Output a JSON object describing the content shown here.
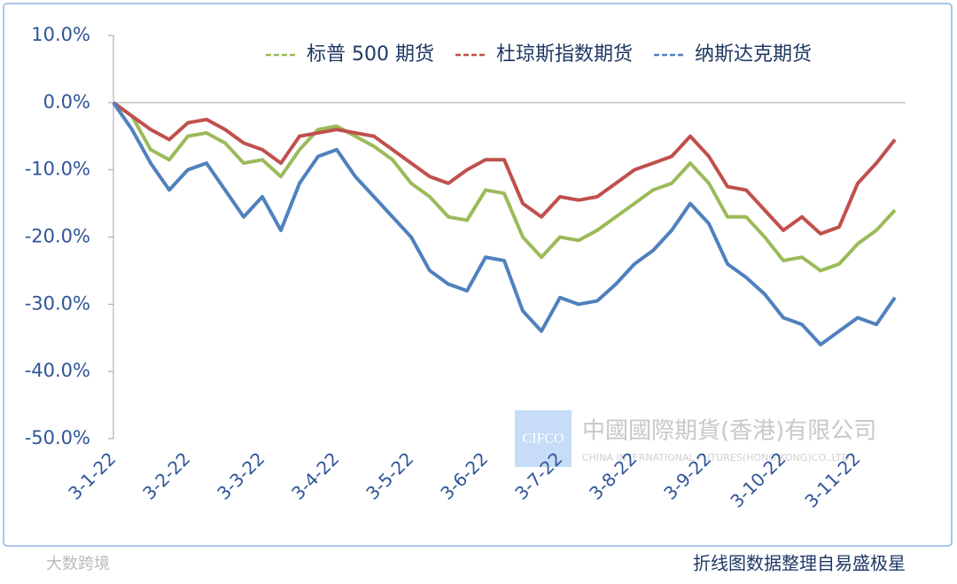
{
  "chart_data": {
    "type": "line",
    "categories": [
      "3-1-22",
      null,
      null,
      null,
      "3-2-22",
      null,
      null,
      null,
      "3-3-22",
      null,
      null,
      null,
      "3-4-22",
      null,
      null,
      null,
      "3-5-22",
      null,
      null,
      null,
      "3-6-22",
      null,
      null,
      null,
      "3-7-22",
      null,
      null,
      null,
      "3-8-22",
      null,
      null,
      null,
      "3-9-22",
      null,
      null,
      null,
      "3-10-22",
      null,
      null,
      null,
      "3-11-22",
      null,
      null
    ],
    "series": [
      {
        "name": "标普 500 期货",
        "color": "#9bbb59",
        "values": [
          0,
          -2,
          -7,
          -8.5,
          -5,
          -4.5,
          -6,
          -9,
          -8.5,
          -11,
          -7,
          -4,
          -3.5,
          -5,
          -6.5,
          -8.5,
          -12,
          -14,
          -17,
          -17.5,
          -13,
          -13.5,
          -20,
          -23,
          -20,
          -20.5,
          -19,
          -17,
          -15,
          -13,
          -12,
          -9,
          -12,
          -17,
          -17,
          -20,
          -23.5,
          -23,
          -25,
          -24,
          -21,
          -19,
          -16
        ]
      },
      {
        "name": "杜琼斯指数期货",
        "color": "#c0504d",
        "values": [
          0,
          -2,
          -4,
          -5.5,
          -3,
          -2.5,
          -4,
          -6,
          -7,
          -9,
          -5,
          -4.5,
          -4,
          -4.5,
          -5,
          -7,
          -9,
          -11,
          -12,
          -10,
          -8.5,
          -8.5,
          -15,
          -17,
          -14,
          -14.5,
          -14,
          -12,
          -10,
          -9,
          -8,
          -5,
          -8,
          -12.5,
          -13,
          -16,
          -19,
          -17,
          -19.5,
          -18.5,
          -12,
          -9,
          -5.5
        ]
      },
      {
        "name": "纳斯达克期货",
        "color": "#4f81bd",
        "values": [
          0,
          -4,
          -9,
          -13,
          -10,
          -9,
          -13,
          -17,
          -14,
          -19,
          -12,
          -8,
          -7,
          -11,
          -14,
          -17,
          -20,
          -25,
          -27,
          -28,
          -23,
          -23.5,
          -31,
          -34,
          -29,
          -30,
          -29.5,
          -27,
          -24,
          -22,
          -19,
          -15,
          -18,
          -24,
          -26,
          -28.5,
          -32,
          -33,
          -36,
          -34,
          -32,
          -33,
          -29
        ]
      }
    ],
    "ylim": [
      -50,
      10
    ],
    "yticks": [
      {
        "value": -50,
        "label": "-50.0%"
      },
      {
        "value": -40,
        "label": "-40.0%"
      },
      {
        "value": -30,
        "label": "-30.0%"
      },
      {
        "value": -20,
        "label": "-20.0%"
      },
      {
        "value": -10,
        "label": "-10.0%"
      },
      {
        "value": 0,
        "label": "0.0%"
      },
      {
        "value": 10,
        "label": "10.0%"
      }
    ],
    "source": "折线图数据整理自易盛极星",
    "watermark": {
      "logo": "CIFCO",
      "name": "中國國際期貨(香港)有限公司",
      "name_en": "CHINA INTERNATIONAL FUTURES(HONG KONG)CO.,LTD.",
      "corner": "大数跨境"
    }
  }
}
